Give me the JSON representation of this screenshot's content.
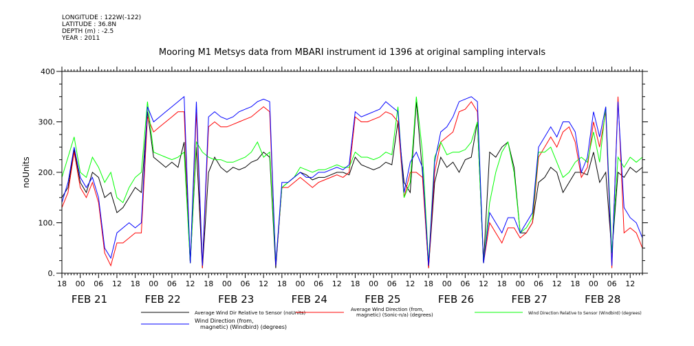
{
  "header": {
    "longitude": "LONGITUDE : 122W(-122)",
    "latitude": "LATITUDE : 36.8N",
    "depth": "DEPTH (m) : -2.5",
    "year": "YEAR : 2011"
  },
  "chart_data": {
    "type": "line",
    "title": "Mooring M1 Metsys data from MBARI instrument id 1396 at original sampling intervals",
    "ylabel": "noUnits",
    "ylim": [
      0,
      400
    ],
    "y_ticks": [
      "0.",
      "100.",
      "200.",
      "300.",
      "400"
    ],
    "xlim_hours": [
      0,
      190
    ],
    "hour_tick_labels": [
      "18",
      "00",
      "06",
      "12",
      "18",
      "00",
      "06",
      "12",
      "18",
      "00",
      "06",
      "12",
      "18",
      "00",
      "06",
      "12",
      "18",
      "00",
      "06",
      "12",
      "18",
      "00",
      "06",
      "12",
      "18",
      "00",
      "06",
      "12",
      "18",
      "00",
      "06",
      "12"
    ],
    "day_labels": [
      "FEB 21",
      "FEB 22",
      "FEB 23",
      "FEB 24",
      "FEB 25",
      "FEB 26",
      "FEB 27",
      "FEB 28"
    ],
    "grid": false,
    "legend_position": "bottom",
    "series": [
      {
        "name": "Average Wind Dir Relative to Sensor (noUnits)",
        "color": "#000000",
        "x": [
          0,
          2,
          4,
          6,
          8,
          10,
          12,
          14,
          16,
          18,
          20,
          22,
          24,
          26,
          28,
          30,
          32,
          34,
          36,
          38,
          40,
          42,
          44,
          46,
          48,
          50,
          52,
          54,
          56,
          58,
          60,
          62,
          64,
          66,
          68,
          70,
          72,
          74,
          76,
          78,
          80,
          82,
          84,
          86,
          88,
          90,
          92,
          94,
          96,
          98,
          100,
          102,
          104,
          106,
          108,
          110,
          112,
          114,
          116,
          118,
          120,
          122,
          124,
          126,
          128,
          130,
          132,
          134,
          136,
          138,
          140,
          142,
          144,
          146,
          148,
          150,
          152,
          154,
          156,
          158,
          160,
          162,
          164,
          166,
          168,
          170,
          172,
          174,
          176,
          178,
          180,
          182,
          184,
          186,
          188,
          190
        ],
        "y": [
          150,
          170,
          245,
          180,
          160,
          200,
          190,
          150,
          160,
          120,
          130,
          150,
          170,
          160,
          320,
          230,
          220,
          210,
          220,
          210,
          260,
          20,
          250,
          10,
          200,
          230,
          210,
          200,
          210,
          205,
          210,
          220,
          225,
          240,
          230,
          10,
          170,
          180,
          190,
          200,
          195,
          185,
          190,
          190,
          195,
          200,
          200,
          195,
          230,
          215,
          210,
          205,
          210,
          220,
          215,
          300,
          180,
          160,
          340,
          200,
          10,
          180,
          230,
          210,
          220,
          200,
          225,
          230,
          300,
          20,
          240,
          230,
          250,
          260,
          210,
          80,
          80,
          100,
          180,
          190,
          210,
          200,
          160,
          180,
          200,
          200,
          195,
          240,
          180,
          200,
          40,
          200,
          190,
          210,
          200,
          210
        ]
      },
      {
        "name": "Average Wind Direction (from, magnetic) (Sonic-n/a) (degrees)",
        "color": "#ff0000",
        "x": [
          0,
          2,
          4,
          6,
          8,
          10,
          12,
          14,
          16,
          18,
          20,
          22,
          24,
          26,
          28,
          30,
          32,
          34,
          36,
          38,
          40,
          42,
          44,
          46,
          48,
          50,
          52,
          54,
          56,
          58,
          60,
          62,
          64,
          66,
          68,
          70,
          72,
          74,
          76,
          78,
          80,
          82,
          84,
          86,
          88,
          90,
          92,
          94,
          96,
          98,
          100,
          102,
          104,
          106,
          108,
          110,
          112,
          114,
          116,
          118,
          120,
          122,
          124,
          126,
          128,
          130,
          132,
          134,
          136,
          138,
          140,
          142,
          144,
          146,
          148,
          150,
          152,
          154,
          156,
          158,
          160,
          162,
          164,
          166,
          168,
          170,
          172,
          174,
          176,
          178,
          180,
          182,
          184,
          186,
          188,
          190
        ],
        "y": [
          130,
          160,
          240,
          170,
          150,
          180,
          140,
          40,
          15,
          60,
          60,
          70,
          80,
          80,
          310,
          280,
          290,
          300,
          310,
          320,
          320,
          20,
          320,
          10,
          290,
          300,
          290,
          290,
          295,
          300,
          305,
          310,
          320,
          330,
          320,
          15,
          170,
          170,
          180,
          190,
          180,
          170,
          180,
          185,
          190,
          195,
          190,
          200,
          310,
          300,
          300,
          305,
          310,
          320,
          315,
          300,
          150,
          200,
          200,
          190,
          10,
          200,
          260,
          270,
          280,
          320,
          325,
          340,
          320,
          20,
          100,
          80,
          60,
          90,
          90,
          70,
          80,
          100,
          230,
          250,
          270,
          250,
          280,
          290,
          260,
          190,
          210,
          300,
          250,
          320,
          10,
          350,
          80,
          90,
          80,
          50
        ]
      },
      {
        "name": "Wind Direction Relative to Sensor (Windbird) (degrees)",
        "color": "#00ff00",
        "x": [
          0,
          2,
          4,
          6,
          8,
          10,
          12,
          14,
          16,
          18,
          20,
          22,
          24,
          26,
          28,
          30,
          32,
          34,
          36,
          38,
          40,
          42,
          44,
          46,
          48,
          50,
          52,
          54,
          56,
          58,
          60,
          62,
          64,
          66,
          68,
          70,
          72,
          74,
          76,
          78,
          80,
          82,
          84,
          86,
          88,
          90,
          92,
          94,
          96,
          98,
          100,
          102,
          104,
          106,
          108,
          110,
          112,
          114,
          116,
          118,
          120,
          122,
          124,
          126,
          128,
          130,
          132,
          134,
          136,
          138,
          140,
          142,
          144,
          146,
          148,
          150,
          152,
          154,
          156,
          158,
          160,
          162,
          164,
          166,
          168,
          170,
          172,
          174,
          176,
          178,
          180,
          182,
          184,
          186,
          188,
          190
        ],
        "y": [
          190,
          230,
          270,
          200,
          190,
          230,
          210,
          180,
          200,
          150,
          140,
          170,
          190,
          200,
          340,
          240,
          235,
          230,
          225,
          230,
          240,
          20,
          260,
          240,
          230,
          225,
          225,
          220,
          220,
          225,
          230,
          240,
          260,
          230,
          240,
          20,
          170,
          180,
          190,
          210,
          205,
          200,
          205,
          205,
          210,
          215,
          210,
          210,
          240,
          230,
          230,
          225,
          230,
          240,
          235,
          330,
          150,
          180,
          350,
          240,
          20,
          230,
          260,
          235,
          240,
          240,
          245,
          260,
          300,
          20,
          140,
          200,
          240,
          260,
          200,
          80,
          90,
          110,
          240,
          240,
          250,
          220,
          190,
          200,
          220,
          230,
          220,
          280,
          220,
          330,
          40,
          230,
          210,
          230,
          220,
          230
        ]
      },
      {
        "name": "Wind Direction (from, magnetic) (Windbird) (degrees)",
        "color": "#0000ff",
        "x": [
          0,
          2,
          4,
          6,
          8,
          10,
          12,
          14,
          16,
          18,
          20,
          22,
          24,
          26,
          28,
          30,
          32,
          34,
          36,
          38,
          40,
          42,
          44,
          46,
          48,
          50,
          52,
          54,
          56,
          58,
          60,
          62,
          64,
          66,
          68,
          70,
          72,
          74,
          76,
          78,
          80,
          82,
          84,
          86,
          88,
          90,
          92,
          94,
          96,
          98,
          100,
          102,
          104,
          106,
          108,
          110,
          112,
          114,
          116,
          118,
          120,
          122,
          124,
          126,
          128,
          130,
          132,
          134,
          136,
          138,
          140,
          142,
          144,
          146,
          148,
          150,
          152,
          154,
          156,
          158,
          160,
          162,
          164,
          166,
          168,
          170,
          172,
          174,
          176,
          178,
          180,
          182,
          184,
          186,
          188,
          190
        ],
        "y": [
          140,
          180,
          250,
          190,
          170,
          190,
          150,
          50,
          30,
          80,
          90,
          100,
          90,
          100,
          330,
          300,
          310,
          320,
          330,
          340,
          350,
          20,
          340,
          15,
          310,
          320,
          310,
          305,
          310,
          320,
          325,
          330,
          340,
          345,
          340,
          15,
          180,
          180,
          190,
          200,
          190,
          190,
          200,
          200,
          205,
          210,
          205,
          215,
          320,
          310,
          315,
          320,
          325,
          340,
          330,
          320,
          160,
          220,
          240,
          210,
          15,
          220,
          280,
          290,
          310,
          340,
          345,
          350,
          340,
          20,
          120,
          100,
          80,
          110,
          110,
          80,
          100,
          120,
          250,
          270,
          290,
          270,
          300,
          300,
          280,
          200,
          230,
          320,
          270,
          330,
          15,
          340,
          130,
          110,
          100,
          70
        ]
      }
    ]
  }
}
